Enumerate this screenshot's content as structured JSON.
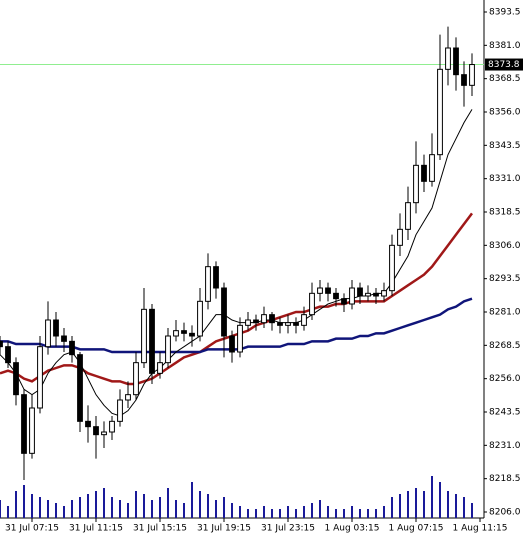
{
  "chart_data": {
    "type": "candlestick",
    "open": [
      8270,
      8268,
      8262,
      8250,
      8228,
      8245,
      8268,
      8278,
      8272,
      8270,
      8265,
      8240,
      8238,
      8235,
      8236,
      8240,
      8248,
      8250,
      8262,
      8282,
      8258,
      8262,
      8272,
      8274,
      8273,
      8272,
      8285,
      8298,
      8290,
      8272,
      8266,
      8276,
      8278,
      8277,
      8280,
      8277,
      8276,
      8277,
      8276,
      8280,
      8288,
      8290,
      8288,
      8286,
      8284,
      8290,
      8287,
      8288,
      8287,
      8289,
      8306,
      8312,
      8322,
      8336,
      8330,
      8340,
      8372,
      8380,
      8370,
      8366
    ],
    "high": [
      8272,
      8270,
      8264,
      8252,
      8250,
      8272,
      8285,
      8281,
      8275,
      8272,
      8266,
      8246,
      8242,
      8240,
      8242,
      8252,
      8255,
      8266,
      8290,
      8284,
      8266,
      8275,
      8278,
      8277,
      8276,
      8290,
      8303,
      8300,
      8292,
      8274,
      8279,
      8281,
      8280,
      8283,
      8281,
      8279,
      8280,
      8279,
      8283,
      8292,
      8293,
      8292,
      8290,
      8288,
      8293,
      8292,
      8291,
      8290,
      8292,
      8310,
      8318,
      8328,
      8345,
      8340,
      8348,
      8385,
      8388,
      8384,
      8375,
      8378
    ],
    "low": [
      8265,
      8260,
      8246,
      8218,
      8226,
      8243,
      8265,
      8268,
      8266,
      8262,
      8236,
      8232,
      8226,
      8230,
      8233,
      8238,
      8245,
      8248,
      8260,
      8254,
      8256,
      8260,
      8270,
      8270,
      8268,
      8270,
      8282,
      8286,
      8264,
      8262,
      8264,
      8274,
      8274,
      8275,
      8274,
      8273,
      8273,
      8273,
      8274,
      8278,
      8285,
      8285,
      8283,
      8281,
      8282,
      8284,
      8285,
      8284,
      8285,
      8287,
      8302,
      8308,
      8318,
      8326,
      8328,
      8338,
      8366,
      8364,
      8358,
      8362
    ],
    "close": [
      8268,
      8262,
      8250,
      8228,
      8245,
      8268,
      8278,
      8272,
      8270,
      8265,
      8240,
      8238,
      8235,
      8236,
      8240,
      8248,
      8250,
      8262,
      8282,
      8258,
      8262,
      8272,
      8274,
      8273,
      8272,
      8285,
      8298,
      8290,
      8272,
      8266,
      8276,
      8278,
      8277,
      8280,
      8277,
      8276,
      8277,
      8276,
      8280,
      8288,
      8290,
      8288,
      8286,
      8284,
      8290,
      8287,
      8288,
      8287,
      8289,
      8306,
      8312,
      8322,
      8336,
      8330,
      8340,
      8372,
      8380,
      8370,
      8366,
      8373.8
    ],
    "volume": [
      30,
      20,
      45,
      55,
      40,
      35,
      30,
      25,
      20,
      30,
      35,
      40,
      45,
      50,
      35,
      30,
      25,
      45,
      40,
      30,
      35,
      50,
      30,
      25,
      60,
      45,
      40,
      30,
      35,
      25,
      20,
      15,
      15,
      20,
      15,
      15,
      20,
      15,
      20,
      25,
      30,
      20,
      15,
      15,
      20,
      15,
      15,
      15,
      20,
      35,
      40,
      45,
      50,
      45,
      70,
      60,
      45,
      40,
      35,
      25
    ],
    "volume_color": "#1a1a99",
    "moving_averages": [
      {
        "color": "#a01818",
        "width": 2.5,
        "values": [
          8258,
          8259,
          8258,
          8256,
          8255,
          8257,
          8259,
          8260,
          8261,
          8261,
          8260,
          8258,
          8257,
          8256,
          8255,
          8255,
          8254,
          8254,
          8255,
          8256,
          8258,
          8260,
          8262,
          8264,
          8265,
          8266,
          8268,
          8270,
          8271,
          8272,
          8273,
          8274,
          8276,
          8277,
          8278,
          8279,
          8280,
          8281,
          8281,
          8282,
          8283,
          8283,
          8284,
          8284,
          8285,
          8285,
          8285,
          8285,
          8285,
          8287,
          8289,
          8291,
          8293,
          8295,
          8298,
          8302,
          8306,
          8310,
          8314,
          8318
        ]
      },
      {
        "color": "#10157a",
        "width": 2.5,
        "values": [
          8270,
          8270,
          8269,
          8269,
          8269,
          8269,
          8268,
          8268,
          8268,
          8268,
          8267,
          8267,
          8267,
          8267,
          8266,
          8266,
          8266,
          8266,
          8266,
          8266,
          8266,
          8266,
          8266,
          8266,
          8266,
          8266,
          8267,
          8267,
          8267,
          8267,
          8267,
          8268,
          8268,
          8268,
          8268,
          8268,
          8269,
          8269,
          8269,
          8270,
          8270,
          8270,
          8271,
          8271,
          8271,
          8272,
          8272,
          8273,
          8273,
          8274,
          8275,
          8276,
          8277,
          8278,
          8279,
          8280,
          8282,
          8283,
          8285,
          8286
        ]
      },
      {
        "color": "#000000",
        "width": 1,
        "values": [
          8265,
          8262,
          8258,
          8252,
          8250,
          8252,
          8258,
          8262,
          8265,
          8266,
          8262,
          8256,
          8250,
          8246,
          8243,
          8242,
          8244,
          8248,
          8254,
          8258,
          8260,
          8263,
          8266,
          8268,
          8270,
          8272,
          8276,
          8280,
          8280,
          8278,
          8277,
          8277,
          8277,
          8278,
          8278,
          8277,
          8277,
          8277,
          8278,
          8280,
          8282,
          8284,
          8285,
          8286,
          8286,
          8287,
          8287,
          8288,
          8288,
          8292,
          8297,
          8302,
          8310,
          8315,
          8320,
          8330,
          8340,
          8346,
          8352,
          8357
        ]
      }
    ],
    "last_price": 8373.8,
    "last_price_color": "#90ee90",
    "ylim": [
      8203.75,
      8398.0
    ],
    "yticks": [
      {
        "value": 8206,
        "label": "8206.0"
      },
      8218.5,
      {
        "value": 8231,
        "label": "8231.0"
      },
      8243.5,
      {
        "value": 8256,
        "label": "8256.0"
      },
      8268.5,
      {
        "value": 8281,
        "label": "8281.0"
      },
      8293.5,
      {
        "value": 8306,
        "label": "8306.0"
      },
      8318.5,
      {
        "value": 8331,
        "label": "8331.0"
      },
      8343.5,
      {
        "value": 8356,
        "label": "8356.0"
      },
      8368.5,
      {
        "value": 8381,
        "label": "8381.0"
      },
      8393.5
    ],
    "xlim": [
      0,
      60.5
    ],
    "xticks": [
      {
        "value": 4,
        "label": "31 Jul 07:15"
      },
      {
        "value": 12,
        "label": "31 Jul 11:15"
      },
      {
        "value": 20,
        "label": "31 Jul 15:15"
      },
      {
        "value": 28,
        "label": "31 Jul 19:15"
      },
      {
        "value": 36,
        "label": "31 Jul 23:15"
      },
      {
        "value": 44,
        "label": "1 Aug 03:15"
      },
      {
        "value": 52,
        "label": "1 Aug 07:15"
      },
      {
        "value": 60,
        "label": "1 Aug 11:15"
      }
    ]
  }
}
